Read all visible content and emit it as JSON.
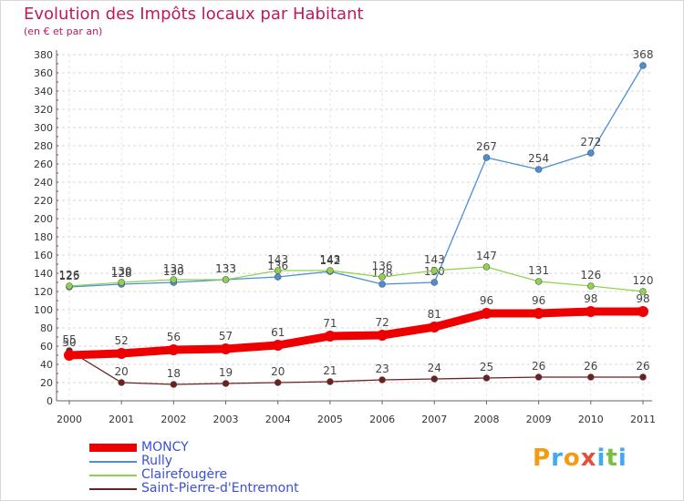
{
  "title": "Evolution des Impôts locaux par Habitant",
  "subtitle": "(en € et par an)",
  "logo": {
    "text": "Proxiti",
    "letters": [
      "P",
      "r",
      "o",
      "x",
      "i",
      "t",
      "i"
    ],
    "colors": [
      "#f39c12",
      "#3fa9f5",
      "#f39c12",
      "#e74c3c",
      "#3fa9f5",
      "#7ac143",
      "#3fa9f5"
    ]
  },
  "chart_data": {
    "type": "line",
    "title": "Evolution des Impôts locaux par Habitant",
    "subtitle": "(en € et par an)",
    "xlabel": "",
    "ylabel": "",
    "x": [
      "2000",
      "2001",
      "2002",
      "2003",
      "2004",
      "2005",
      "2006",
      "2007",
      "2008",
      "2009",
      "2010",
      "2011"
    ],
    "ylim": [
      0,
      380
    ],
    "yticks": [
      0,
      20,
      40,
      60,
      80,
      100,
      120,
      140,
      160,
      180,
      200,
      220,
      240,
      260,
      280,
      300,
      320,
      340,
      360,
      380
    ],
    "grid": true,
    "legend_position": "bottom-left",
    "series": [
      {
        "name": "Rully",
        "color": "#4a8fd6",
        "values": [
          125,
          128,
          130,
          133,
          136,
          142,
          128,
          130,
          267,
          254,
          272,
          368
        ],
        "labels": [
          "125",
          "128",
          "130",
          "133",
          "136",
          "142",
          "128",
          "130",
          "267",
          "254",
          "272",
          "368"
        ]
      },
      {
        "name": "Clairefougère",
        "color": "#8fd24e",
        "values": [
          126,
          130,
          133,
          133,
          143,
          143,
          136,
          143,
          147,
          131,
          126,
          120
        ],
        "labels": [
          "126",
          "130",
          "133",
          "133",
          "143",
          "143",
          "136",
          "143",
          "147",
          "131",
          "126",
          "120"
        ]
      },
      {
        "name": "Saint-Pierre-d'Entremont",
        "color": "#6e1f1f",
        "values": [
          55,
          20,
          18,
          19,
          20,
          21,
          23,
          24,
          25,
          26,
          26,
          26
        ],
        "labels": [
          "55",
          "20",
          "18",
          "19",
          "20",
          "21",
          "23",
          "24",
          "25",
          "26",
          "26",
          "26"
        ]
      },
      {
        "name": "MONCY",
        "color": "#ee0000",
        "values": [
          50,
          52,
          56,
          57,
          61,
          71,
          72,
          81,
          96,
          96,
          98,
          98
        ],
        "labels": [
          "50",
          "52",
          "56",
          "57",
          "61",
          "71",
          "72",
          "81",
          "96",
          "96",
          "98",
          "98"
        ]
      }
    ],
    "legend": [
      "MONCY",
      "Rully",
      "Clairefougère",
      "Saint-Pierre-d'Entremont"
    ]
  }
}
